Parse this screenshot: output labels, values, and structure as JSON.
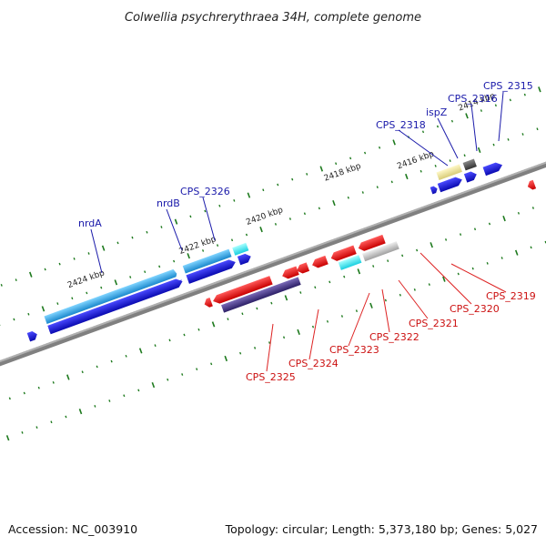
{
  "title": "Colwellia psychrerythraea 34H, complete genome",
  "footer": {
    "accession": "Accession: NC_003910",
    "topology": "Topology: circular; Length: 5,373,180 bp; Genes: 5,027"
  },
  "kbp_labels": [
    "2414 kbp",
    "2416 kbp",
    "2418 kbp",
    "2420 kbp",
    "2422 kbp",
    "2424 kbp"
  ],
  "upper_gene_labels": [
    "CPS_2315",
    "CPS_2316",
    "ispZ",
    "CPS_2318",
    "CPS_2326",
    "nrdB",
    "nrdA"
  ],
  "lower_gene_labels": [
    "CPS_2319",
    "CPS_2320",
    "CPS_2321",
    "CPS_2322",
    "CPS_2323",
    "CPS_2324",
    "CPS_2325"
  ],
  "colors": {
    "forward_gene": "#1515d8",
    "reverse_gene": "#e01010",
    "cds_feature": "#2aa0e0",
    "rna_feature": "#2ee0f0",
    "hypothetical": "#e8e09a",
    "dark_feature": "#555555",
    "grey_feature": "#bbbbbb",
    "purple_feature": "#4a3a8a",
    "backbone": "#808080",
    "tick": "#1e7a1e"
  }
}
